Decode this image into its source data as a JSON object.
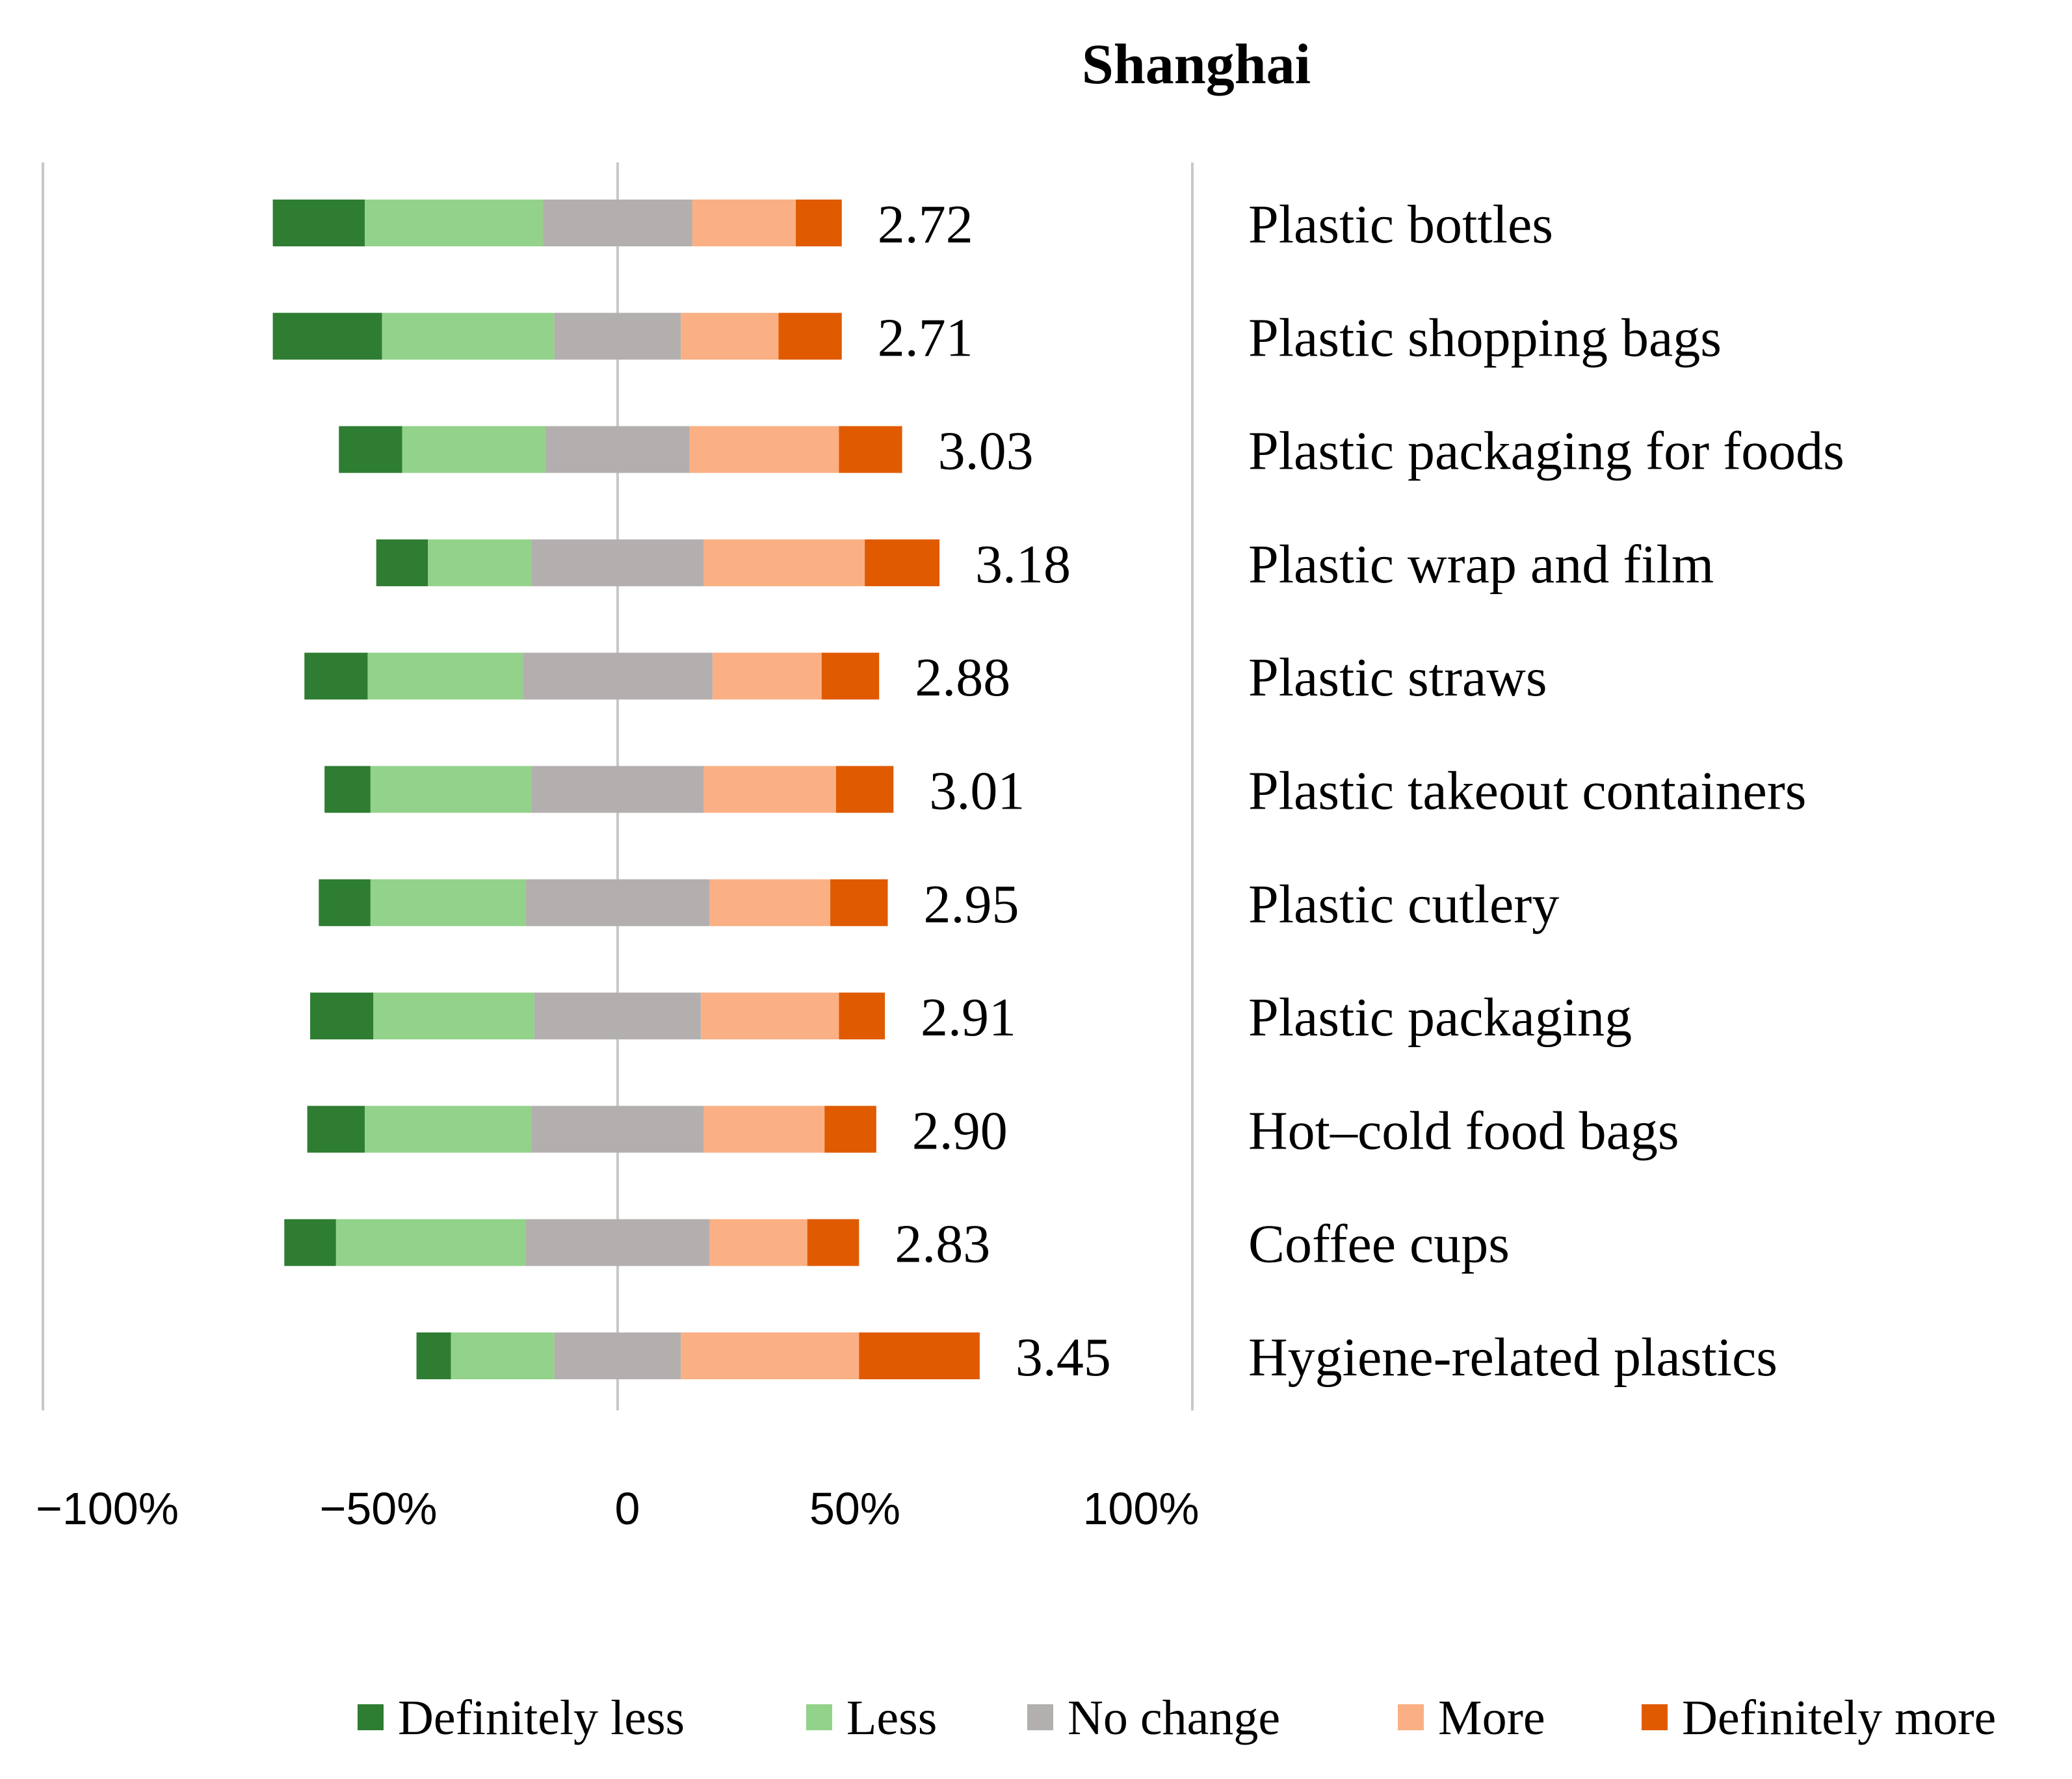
{
  "chart_data": {
    "type": "bar",
    "orientation": "horizontal",
    "stacking": "diverging",
    "title": "Shanghai",
    "xlim": [
      -100,
      100
    ],
    "x_ticks": [
      -100,
      -50,
      0,
      50,
      100
    ],
    "x_tick_labels": [
      "−100%",
      "−50%",
      "0",
      "50%",
      "100%"
    ],
    "grid": "vertical lines at -100, 0, 100",
    "legend_position": "bottom",
    "categories": [
      "Plastic bottles",
      "Plastic shopping bags",
      "Plastic packaging for foods",
      "Plastic wrap and film",
      "Plastic straws",
      "Plastic takeout containers",
      "Plastic cutlery",
      "Plastic packaging",
      "Hot–cold food bags",
      "Coffee cups",
      "Hygiene-related plastics"
    ],
    "mean_scores": [
      "2.72",
      "2.71",
      "3.03",
      "3.18",
      "2.88",
      "3.01",
      "2.95",
      "2.91",
      "2.90",
      "2.83",
      "3.45"
    ],
    "series": [
      {
        "name": "Definitely less",
        "color": "#2e7d32",
        "values": [
          16,
          19,
          11,
          9,
          11,
          8,
          9,
          11,
          10,
          9,
          6
        ]
      },
      {
        "name": "Less",
        "color": "#93d28a",
        "values": [
          31,
          30,
          25,
          18,
          27,
          28,
          27,
          28,
          29,
          33,
          18
        ]
      },
      {
        "name": "No change",
        "color": "#b3afaf",
        "values": [
          26,
          22,
          25,
          30,
          33,
          30,
          32,
          29,
          30,
          32,
          22
        ]
      },
      {
        "name": "More",
        "color": "#fab084",
        "values": [
          18,
          17,
          26,
          28,
          19,
          23,
          21,
          24,
          21,
          17,
          31
        ]
      },
      {
        "name": "Definitely more",
        "color": "#e05a00",
        "values": [
          8,
          11,
          11,
          13,
          10,
          10,
          10,
          8,
          9,
          9,
          21
        ]
      }
    ]
  }
}
